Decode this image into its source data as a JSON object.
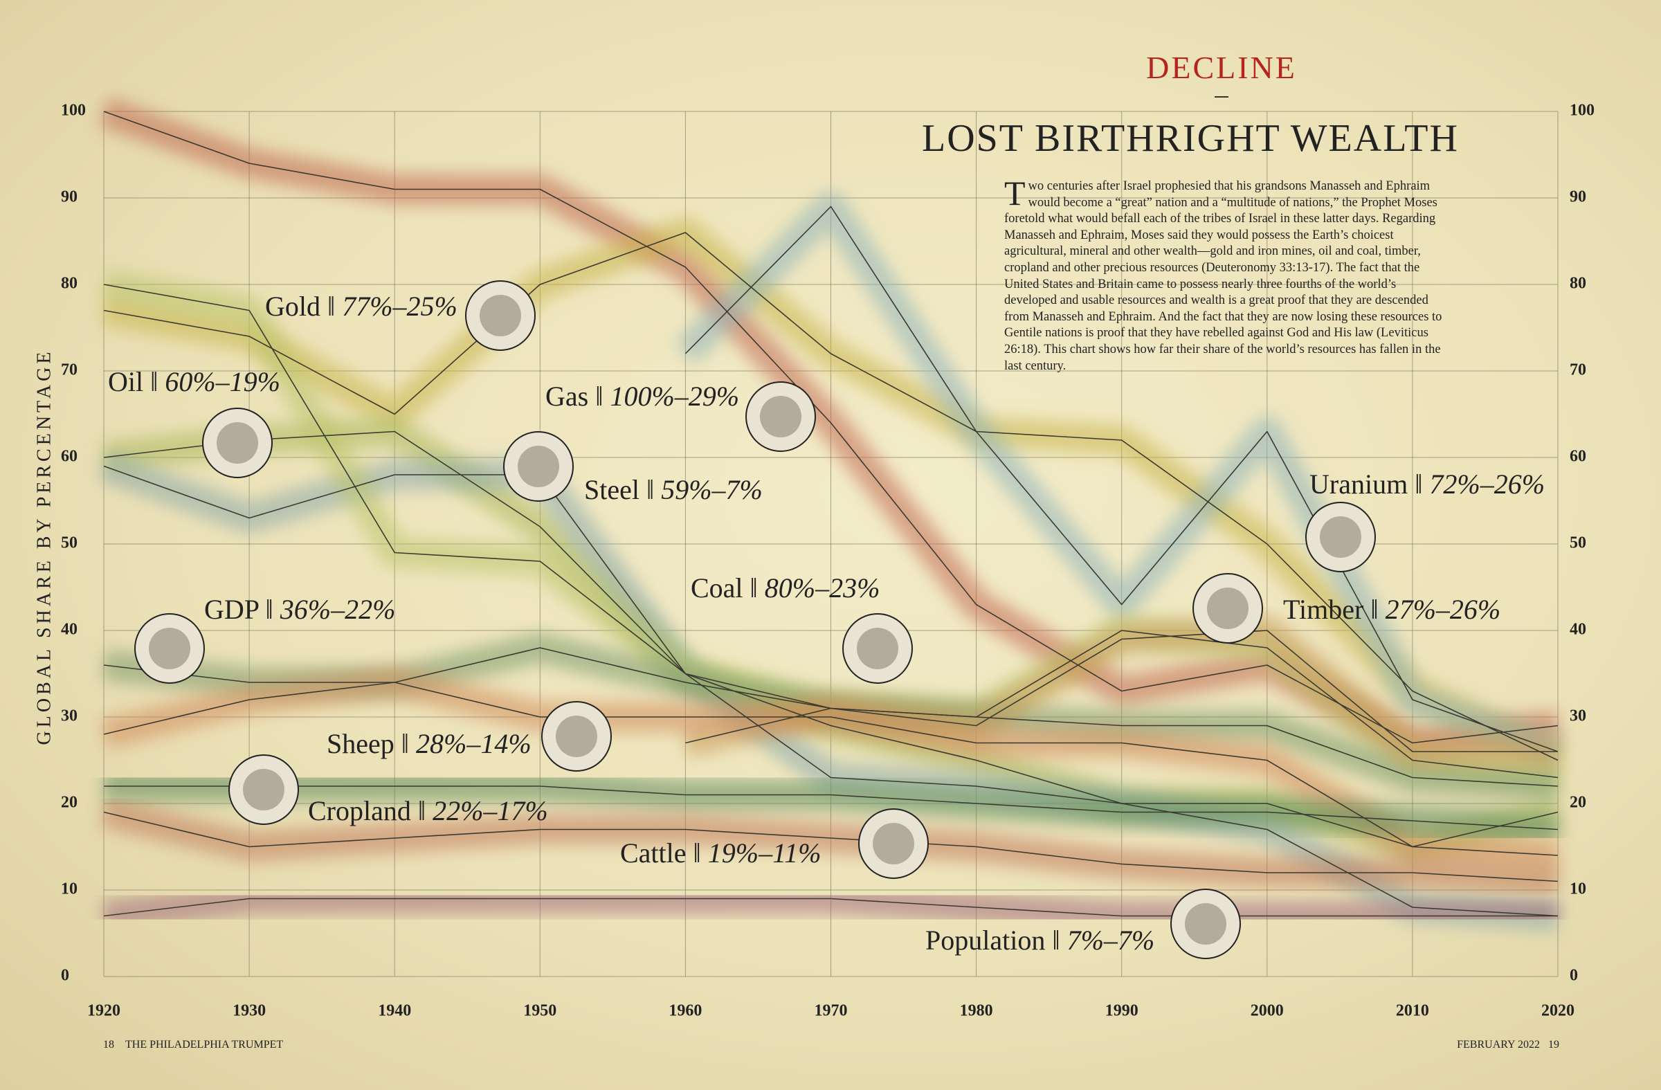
{
  "chart_data": {
    "type": "line",
    "kicker": "DECLINE",
    "title": "LOST BIRTHRIGHT WEALTH",
    "body": "Two centuries after Israel prophesied that his grandsons Manasseh and Ephraim would become a “great” nation and a “multitude of nations,” the Prophet Moses foretold what would befall each of the tribes of Israel in these latter days. Regarding Manasseh and Ephraim, Moses said they would possess the Earth’s choicest agricultural, mineral and other wealth—gold and iron mines, oil and coal, timber, cropland and other precious resources (Deuteronomy 33:13-17). The fact that the United States and Britain came to possess nearly three fourths of the world’s developed and usable resources and wealth is a great proof that they are descended from Manasseh and Ephraim. And the fact that they are now losing these resources to Gentile nations is proof that they have rebelled against God and His law (Leviticus 26:18). This chart shows how far their share of the world’s resources has fallen in the last century.",
    "y_label": "GLOBAL SHARE BY PERCENTAGE",
    "x": [
      1920,
      1930,
      1940,
      1950,
      1960,
      1970,
      1980,
      1990,
      2000,
      2010,
      2020
    ],
    "xlim": [
      1920,
      2020
    ],
    "xticks": [
      1920,
      1930,
      1940,
      1950,
      1960,
      1970,
      1980,
      1990,
      2000,
      2010,
      2020
    ],
    "ylim": [
      0,
      100
    ],
    "yticks": [
      0,
      10,
      20,
      30,
      40,
      50,
      60,
      70,
      80,
      90,
      100
    ],
    "grid": true,
    "series": [
      {
        "name": "Gas",
        "range_label": "100%–29%",
        "color": "#c0674f",
        "values": [
          100,
          94,
          91,
          91,
          82,
          64,
          43,
          33,
          36,
          27,
          29
        ]
      },
      {
        "name": "Gold",
        "range_label": "77%–25%",
        "color": "#c8b44a",
        "values": [
          77,
          74,
          65,
          80,
          86,
          72,
          63,
          62,
          50,
          33,
          25
        ]
      },
      {
        "name": "Uranium",
        "range_label": "72%–26%",
        "color": "#8fb3b8",
        "values": [
          null,
          null,
          null,
          null,
          72,
          89,
          63,
          43,
          63,
          32,
          26
        ]
      },
      {
        "name": "Oil",
        "range_label": "60%–19%",
        "color": "#a8b85a",
        "values": [
          60,
          62,
          63,
          52,
          35,
          29,
          25,
          20,
          20,
          15,
          19
        ]
      },
      {
        "name": "Steel",
        "range_label": "59%–7%",
        "color": "#8aa8a8",
        "values": [
          59,
          53,
          58,
          58,
          35,
          23,
          22,
          20,
          17,
          8,
          7
        ]
      },
      {
        "name": "Coal",
        "range_label": "80%–23%",
        "color": "#b9c46a",
        "values": [
          80,
          77,
          49,
          48,
          35,
          31,
          30,
          40,
          38,
          25,
          23
        ]
      },
      {
        "name": "GDP",
        "range_label": "36%–22%",
        "color": "#7a9a6a",
        "values": [
          36,
          34,
          34,
          38,
          34,
          31,
          30,
          29,
          29,
          23,
          22
        ]
      },
      {
        "name": "Timber",
        "range_label": "27%–26%",
        "color": "#c89a5a",
        "values": [
          null,
          null,
          null,
          null,
          27,
          31,
          29,
          39,
          40,
          26,
          26
        ]
      },
      {
        "name": "Sheep",
        "range_label": "28%–14%",
        "color": "#d08a5a",
        "values": [
          28,
          32,
          34,
          30,
          30,
          30,
          27,
          27,
          25,
          15,
          14
        ]
      },
      {
        "name": "Cropland",
        "range_label": "22%–17%",
        "color": "#5a8a5a",
        "values": [
          22,
          22,
          22,
          22,
          21,
          21,
          20,
          19,
          19,
          18,
          17
        ]
      },
      {
        "name": "Cattle",
        "range_label": "19%–11%",
        "color": "#c07a5a",
        "values": [
          19,
          15,
          16,
          17,
          17,
          16,
          15,
          13,
          12,
          12,
          11
        ]
      },
      {
        "name": "Population",
        "range_label": "7%–7%",
        "color": "#a06a7a",
        "values": [
          7,
          9,
          9,
          9,
          9,
          9,
          8,
          7,
          7,
          7,
          7
        ]
      }
    ]
  },
  "footer": {
    "left_page": "18",
    "publication": "THE PHILADELPHIA TRUMPET",
    "issue": "FEBRUARY 2022",
    "right_page": "19"
  }
}
